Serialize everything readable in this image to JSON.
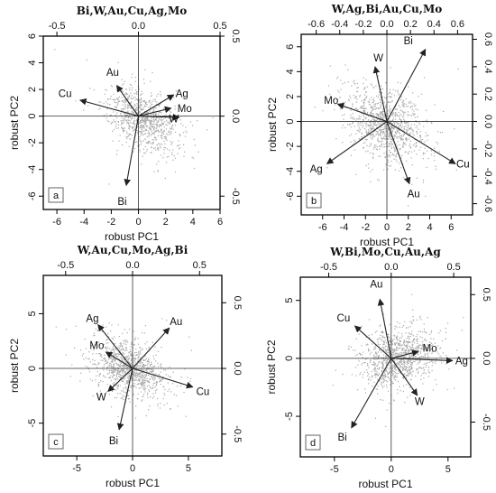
{
  "chart_data": [
    {
      "type": "scatter",
      "id": "a",
      "title": "Bi,W,Au,Cu,Ag,Mo",
      "panel_tag": "a",
      "xlabel": "robust PC1",
      "ylabel": "robust PC2",
      "xlim": [
        -7,
        6
      ],
      "ylim": [
        -7,
        6
      ],
      "x_ticks": [
        "-6",
        "-4",
        "-2",
        "0",
        "2",
        "4",
        "6"
      ],
      "x_tick_values": [
        -6,
        -4,
        -2,
        0,
        2,
        4,
        6
      ],
      "y_ticks": [
        "-6",
        "-4",
        "-2",
        "0",
        "2",
        "4",
        "6"
      ],
      "y_tick_values": [
        -6,
        -4,
        -2,
        0,
        2,
        4,
        6
      ],
      "top_ticks": [
        "-0.5",
        "0.0",
        "0.5"
      ],
      "top_tick_values": [
        -0.5,
        0.0,
        0.5
      ],
      "right_ticks": [
        "-0.5",
        "0.0",
        "0.5"
      ],
      "right_tick_values": [
        -0.5,
        0.0,
        0.5
      ],
      "loading_scale": 12,
      "cloud": {
        "center": [
          0.3,
          -0.2
        ],
        "sx": 1.3,
        "sy": 1.2,
        "rho": -0.4,
        "n": 900,
        "spread_x": [
          -6.5,
          5.5
        ],
        "spread_y": [
          -6.5,
          5.5
        ]
      },
      "arrows": [
        {
          "name": "Au",
          "x": -1.6,
          "y": 2.3,
          "lx": -1.9,
          "ly": 3.3
        },
        {
          "name": "Cu",
          "x": -4.3,
          "y": 1.2,
          "lx": -5.4,
          "ly": 1.7
        },
        {
          "name": "Ag",
          "x": 2.6,
          "y": 1.6,
          "lx": 3.2,
          "ly": 1.7
        },
        {
          "name": "Mo",
          "x": 2.4,
          "y": 0.6,
          "lx": 3.4,
          "ly": 0.6
        },
        {
          "name": "W",
          "x": 3.0,
          "y": -0.1,
          "lx": 2.6,
          "ly": -0.2
        },
        {
          "name": "Bi",
          "x": -0.9,
          "y": -5.2,
          "lx": -1.2,
          "ly": -6.4
        }
      ]
    },
    {
      "type": "scatter",
      "id": "b",
      "title": "W,Ag,Bi,Au,Cu,Mo",
      "panel_tag": "b",
      "xlabel": "robust PC1",
      "ylabel": "robust PC2",
      "xlim": [
        -8,
        8
      ],
      "ylim": [
        -7.5,
        7
      ],
      "x_ticks": [
        "-6",
        "-4",
        "-2",
        "0",
        "2",
        "4",
        "6"
      ],
      "x_tick_values": [
        -6,
        -4,
        -2,
        0,
        2,
        4,
        6
      ],
      "y_ticks": [
        "-6",
        "-4",
        "-2",
        "0",
        "2",
        "4",
        "6"
      ],
      "y_tick_values": [
        -6,
        -4,
        -2,
        0,
        2,
        4,
        6
      ],
      "top_ticks": [
        "-0.6",
        "-0.4",
        "-0.2",
        "0.0",
        "0.2",
        "0.4",
        "0.6"
      ],
      "top_tick_values": [
        -0.6,
        -0.4,
        -0.2,
        0.0,
        0.2,
        0.4,
        0.6
      ],
      "right_ticks": [
        "-0.6",
        "-0.4",
        "-0.2",
        "0.0",
        "0.2",
        "0.4",
        "0.6"
      ],
      "right_tick_values": [
        -0.6,
        -0.4,
        -0.2,
        0.0,
        0.2,
        0.4,
        0.6
      ],
      "loading_scale": 11,
      "cloud": {
        "center": [
          0.0,
          -0.3
        ],
        "sx": 1.8,
        "sy": 1.5,
        "rho": -0.3,
        "n": 1100,
        "spread_x": [
          -7.5,
          7.5
        ],
        "spread_y": [
          -7,
          6.5
        ]
      },
      "arrows": [
        {
          "name": "Bi",
          "x": 3.6,
          "y": 5.8,
          "lx": 2.0,
          "ly": 6.5
        },
        {
          "name": "W",
          "x": -1.1,
          "y": 4.4,
          "lx": -0.8,
          "ly": 5.1
        },
        {
          "name": "Mo",
          "x": -4.6,
          "y": 1.4,
          "lx": -5.2,
          "ly": 1.7
        },
        {
          "name": "Ag",
          "x": -5.6,
          "y": -3.4,
          "lx": -6.6,
          "ly": -3.8
        },
        {
          "name": "Au",
          "x": 2.1,
          "y": -5.0,
          "lx": 2.5,
          "ly": -5.8
        },
        {
          "name": "Cu",
          "x": 6.4,
          "y": -3.4,
          "lx": 7.1,
          "ly": -3.4
        }
      ]
    },
    {
      "type": "scatter",
      "id": "c",
      "title": "W,Au,Cu,Mo,Ag,Bi",
      "panel_tag": "c",
      "xlabel": "robust PC1",
      "ylabel": "robust PC2",
      "xlim": [
        -8,
        8
      ],
      "ylim": [
        -8,
        8.5
      ],
      "x_ticks": [
        "-5",
        "0",
        "5"
      ],
      "x_tick_values": [
        -5,
        0,
        5
      ],
      "y_ticks": [
        "-5",
        "0",
        "5"
      ],
      "y_tick_values": [
        -5,
        0,
        5
      ],
      "top_ticks": [
        "-0.5",
        "0.0",
        "0.5"
      ],
      "top_tick_values": [
        -0.5,
        0.0,
        0.5
      ],
      "right_ticks": [
        "-0.5",
        "0.0",
        "0.5"
      ],
      "right_tick_values": [
        -0.5,
        0.0,
        0.5
      ],
      "loading_scale": 12,
      "cloud": {
        "center": [
          -0.3,
          0.0
        ],
        "sx": 1.6,
        "sy": 1.4,
        "rho": -0.35,
        "n": 1000,
        "spread_x": [
          -7,
          7
        ],
        "spread_y": [
          -7,
          7.5
        ]
      },
      "arrows": [
        {
          "name": "Ag",
          "x": -3.1,
          "y": 4.0,
          "lx": -3.6,
          "ly": 4.6
        },
        {
          "name": "Au",
          "x": 3.3,
          "y": 3.7,
          "lx": 3.9,
          "ly": 4.3
        },
        {
          "name": "Mo",
          "x": -2.4,
          "y": 1.5,
          "lx": -3.2,
          "ly": 2.1
        },
        {
          "name": "W",
          "x": -2.2,
          "y": -2.1,
          "lx": -2.8,
          "ly": -2.6
        },
        {
          "name": "Cu",
          "x": 5.4,
          "y": -1.7,
          "lx": 6.3,
          "ly": -2.1
        },
        {
          "name": "Bi",
          "x": -1.2,
          "y": -5.6,
          "lx": -1.7,
          "ly": -6.6
        }
      ]
    },
    {
      "type": "scatter",
      "id": "d",
      "title": "W,Bi,Mo,Cu,Au,Ag",
      "panel_tag": "d",
      "xlabel": "robust PC1",
      "ylabel": "robust PC2",
      "xlim": [
        -8,
        7
      ],
      "ylim": [
        -8.5,
        7
      ],
      "x_ticks": [
        "-5",
        "0",
        "5"
      ],
      "x_tick_values": [
        -5,
        0,
        5
      ],
      "y_ticks": [
        "-5",
        "0",
        "5"
      ],
      "y_tick_values": [
        -5,
        0,
        5
      ],
      "top_ticks": [
        "-0.5",
        "0.0",
        "0.5"
      ],
      "top_tick_values": [
        -0.5,
        0.0,
        0.5
      ],
      "right_ticks": [
        "-0.5",
        "0.0",
        "0.5"
      ],
      "right_tick_values": [
        -0.5,
        0.0,
        0.5
      ],
      "loading_scale": 11,
      "cloud": {
        "center": [
          0.6,
          0.1
        ],
        "sx": 1.6,
        "sy": 1.3,
        "rho": 0.15,
        "n": 1000,
        "spread_x": [
          -7.5,
          6.5
        ],
        "spread_y": [
          -6,
          5.5
        ]
      },
      "arrows": [
        {
          "name": "Au",
          "x": -1.0,
          "y": 5.1,
          "lx": -1.3,
          "ly": 6.4
        },
        {
          "name": "Cu",
          "x": -3.2,
          "y": 2.8,
          "lx": -4.2,
          "ly": 3.5
        },
        {
          "name": "Mo",
          "x": 2.4,
          "y": 0.6,
          "lx": 3.4,
          "ly": 0.9
        },
        {
          "name": "Ag",
          "x": 5.4,
          "y": -0.2,
          "lx": 6.2,
          "ly": -0.2
        },
        {
          "name": "W",
          "x": 2.3,
          "y": -3.2,
          "lx": 2.5,
          "ly": -3.7
        },
        {
          "name": "Bi",
          "x": -3.5,
          "y": -6.0,
          "lx": -4.3,
          "ly": -6.8
        }
      ]
    }
  ]
}
